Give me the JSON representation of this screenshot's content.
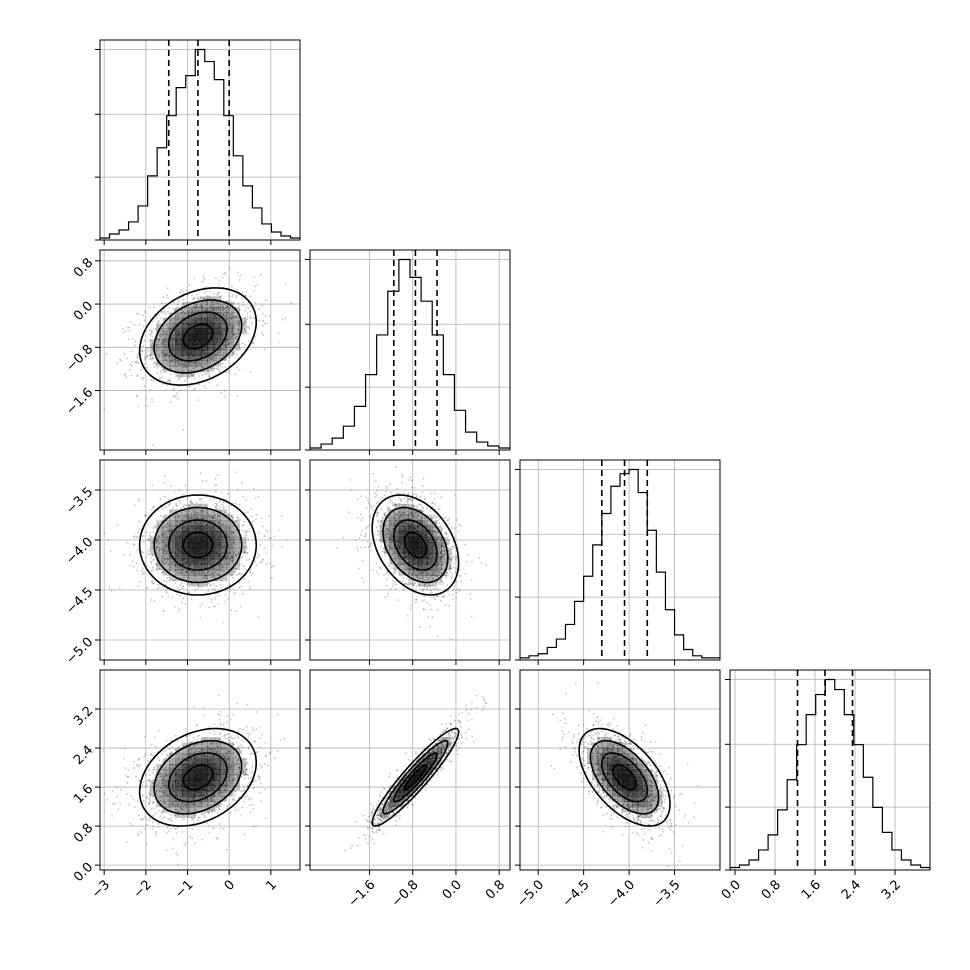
{
  "chart_data": {
    "type": "corner",
    "parameters": 4,
    "grid": true,
    "marginals": [
      {
        "type": "histogram",
        "quantiles": [
          -1.45,
          -0.75,
          0.0
        ],
        "xlim": [
          -3.1,
          1.7
        ],
        "counts": [
          1,
          3,
          5,
          9,
          17,
          32,
          46,
          62,
          76,
          82,
          95,
          89,
          80,
          62,
          42,
          27,
          16,
          8,
          4,
          2,
          1
        ]
      },
      {
        "type": "histogram",
        "quantiles": [
          -1.15,
          -0.75,
          -0.35
        ],
        "xlim": [
          -2.7,
          1.0
        ],
        "counts": [
          1,
          3,
          6,
          12,
          22,
          38,
          58,
          80,
          96,
          87,
          75,
          58,
          38,
          20,
          9,
          4,
          2,
          1
        ]
      },
      {
        "type": "histogram",
        "quantiles": [
          -4.3,
          -4.05,
          -3.8
        ],
        "xlim": [
          -5.2,
          -3.0
        ],
        "counts": [
          1,
          2,
          3,
          6,
          10,
          17,
          28,
          40,
          55,
          70,
          83,
          89,
          91,
          80,
          62,
          42,
          24,
          12,
          5,
          2,
          1,
          1
        ]
      },
      {
        "type": "histogram",
        "quantiles": [
          1.25,
          1.8,
          2.35
        ],
        "xlim": [
          -0.1,
          3.9
        ],
        "counts": [
          1,
          2,
          4,
          8,
          14,
          24,
          36,
          50,
          62,
          70,
          76,
          72,
          62,
          50,
          37,
          25,
          15,
          8,
          4,
          2,
          1
        ]
      }
    ],
    "pairs": [
      {
        "row": 1,
        "col": 0,
        "mean": [
          -0.75,
          -0.6
        ],
        "sd": [
          0.7,
          0.45
        ],
        "rho": 0.3
      },
      {
        "row": 2,
        "col": 0,
        "mean": [
          -0.75,
          -4.05
        ],
        "sd": [
          0.7,
          0.25
        ],
        "rho": 0.0
      },
      {
        "row": 2,
        "col": 1,
        "mean": [
          -0.75,
          -4.05
        ],
        "sd": [
          0.4,
          0.25
        ],
        "rho": -0.35
      },
      {
        "row": 3,
        "col": 0,
        "mean": [
          -0.75,
          1.8
        ],
        "sd": [
          0.7,
          0.5
        ],
        "rho": 0.3
      },
      {
        "row": 3,
        "col": 1,
        "mean": [
          -0.75,
          1.8
        ],
        "sd": [
          0.4,
          0.5
        ],
        "rho": 0.93
      },
      {
        "row": 3,
        "col": 2,
        "mean": [
          -4.05,
          1.8
        ],
        "sd": [
          0.25,
          0.5
        ],
        "rho": -0.55
      }
    ],
    "axes": [
      {
        "name": "",
        "xlim": [
          -3.1,
          1.7
        ],
        "ylim": [
          -2.3,
          1.0
        ],
        "xticks": [
          -3,
          -2,
          -1,
          0,
          1
        ],
        "xtick_labels": [
          "−3",
          "−2",
          "−1",
          "0",
          "1"
        ],
        "yticks": [
          -1.6,
          -0.8,
          0.0,
          0.8
        ],
        "ytick_labels": [
          "−1.6",
          "−0.8",
          "0.0",
          "0.8"
        ]
      },
      {
        "name": "",
        "xlim": [
          -2.7,
          1.0
        ],
        "ylim": [
          -2.7,
          1.0
        ],
        "xticks": [
          -1.6,
          -0.8,
          0.0,
          0.8
        ],
        "xtick_labels": [
          "−1.6",
          "−0.8",
          "0.0",
          "0.8"
        ]
      },
      {
        "name": "",
        "xlim": [
          -5.2,
          -3.0
        ],
        "ylim": [
          -5.2,
          -3.2
        ],
        "xticks": [
          -5.0,
          -4.5,
          -4.0,
          -3.5
        ],
        "xtick_labels": [
          "−5.0",
          "−4.5",
          "−4.0",
          "−3.5"
        ],
        "yticks": [
          -5.0,
          -4.5,
          -4.0,
          -3.5
        ],
        "ytick_labels": [
          "−5.0",
          "−4.5",
          "−4.0",
          "−3.5"
        ]
      },
      {
        "name": "",
        "xlim": [
          -0.1,
          3.9
        ],
        "ylim": [
          -0.1,
          4.0
        ],
        "xticks": [
          0.0,
          0.8,
          1.6,
          2.4,
          3.2
        ],
        "xtick_labels": [
          "0.0",
          "0.8",
          "1.6",
          "2.4",
          "3.2"
        ],
        "yticks": [
          0.0,
          0.8,
          1.6,
          2.4,
          3.2
        ],
        "ytick_labels": [
          "0.0",
          "0.8",
          "1.6",
          "2.4",
          "3.2"
        ]
      }
    ],
    "contour_levels_sigma": [
      0.5,
      1.0,
      1.5,
      2.0
    ],
    "point_color": "#555555",
    "density_color": "#000000",
    "line_color": "#000000"
  }
}
